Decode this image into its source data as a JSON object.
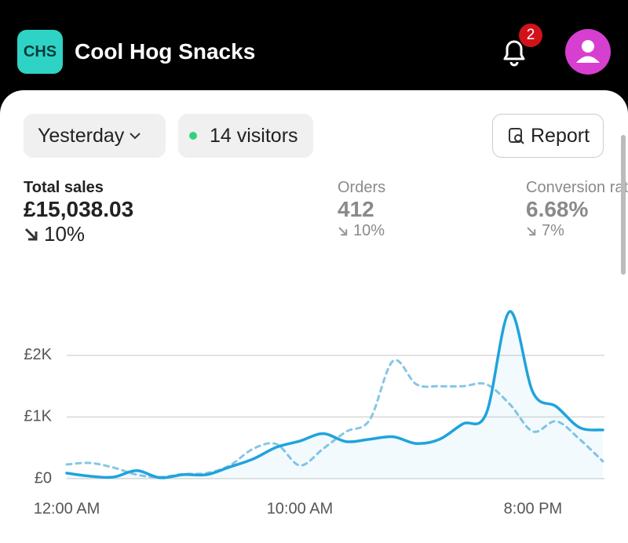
{
  "header": {
    "logo": "CHS",
    "store_name": "Cool Hog Snacks",
    "notification_count": 2
  },
  "filters": {
    "date_range": "Yesterday",
    "visitors": "14 visitors",
    "report_button": "Report"
  },
  "metrics": [
    {
      "label": "Total sales",
      "value": "£15,038.03",
      "change": "10%"
    },
    {
      "label": "Orders",
      "value": "412",
      "change": "10%"
    },
    {
      "label": "Conversion rate",
      "value": "6.68%",
      "change": "7%"
    }
  ],
  "chart_data": {
    "type": "line",
    "x": [
      0,
      1,
      2,
      3,
      4,
      5,
      6,
      7,
      8,
      9,
      10,
      11,
      12,
      13,
      14,
      15,
      16,
      17,
      18,
      19,
      20,
      21,
      22,
      23
    ],
    "xlim": [
      0,
      23
    ],
    "xticks": [
      {
        "value": 0,
        "label": "12:00 AM"
      },
      {
        "value": 10,
        "label": "10:00 AM"
      },
      {
        "value": 20,
        "label": "8:00 PM"
      }
    ],
    "ylim": [
      0,
      2800
    ],
    "yticks": [
      {
        "value": 0,
        "label": "£0"
      },
      {
        "value": 1000,
        "label": "£1K"
      },
      {
        "value": 2000,
        "label": "£2K"
      }
    ],
    "grid": true,
    "series": [
      {
        "color": "#1fa3dc",
        "dashed": false,
        "fill": true,
        "values": [
          90,
          40,
          25,
          130,
          15,
          65,
          65,
          190,
          320,
          510,
          610,
          730,
          600,
          640,
          680,
          570,
          640,
          890,
          1060,
          2710,
          1400,
          1170,
          830,
          790
        ]
      },
      {
        "color": "#86c6e6",
        "dashed": true,
        "fill": false,
        "values": [
          230,
          255,
          180,
          65,
          25,
          75,
          90,
          215,
          485,
          560,
          215,
          485,
          765,
          955,
          1910,
          1530,
          1500,
          1500,
          1530,
          1210,
          765,
          930,
          640,
          280
        ]
      }
    ]
  }
}
